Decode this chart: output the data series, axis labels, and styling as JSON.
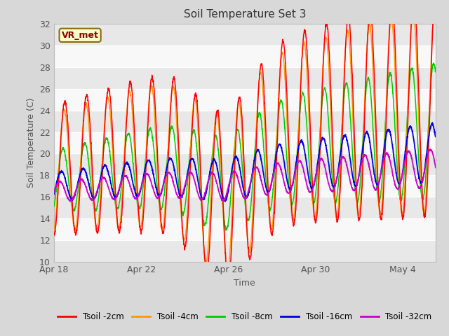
{
  "title": "Soil Temperature Set 3",
  "xlabel": "Time",
  "ylabel": "Soil Temperature (C)",
  "ylim": [
    10,
    32
  ],
  "yticks": [
    10,
    12,
    14,
    16,
    18,
    20,
    22,
    24,
    26,
    28,
    30,
    32
  ],
  "xlim_start": 0,
  "xlim_end": 17.5,
  "xtick_labels": [
    "Apr 18",
    "Apr 22",
    "Apr 26",
    "Apr 30",
    "May 4"
  ],
  "xtick_positions": [
    0,
    4,
    8,
    12,
    16
  ],
  "annotation_text": "VR_met",
  "line_colors": {
    "2cm": "#ff0000",
    "4cm": "#ff9900",
    "8cm": "#00cc00",
    "16cm": "#0000dd",
    "32cm": "#cc00cc"
  },
  "legend_labels": [
    "Tsoil -2cm",
    "Tsoil -4cm",
    "Tsoil -8cm",
    "Tsoil -16cm",
    "Tsoil -32cm"
  ],
  "band_color_light": "#e8e8e8",
  "band_color_dark": "#d8d8d8",
  "plot_bg": "#f0f0f0",
  "fig_bg": "#d8d8d8"
}
